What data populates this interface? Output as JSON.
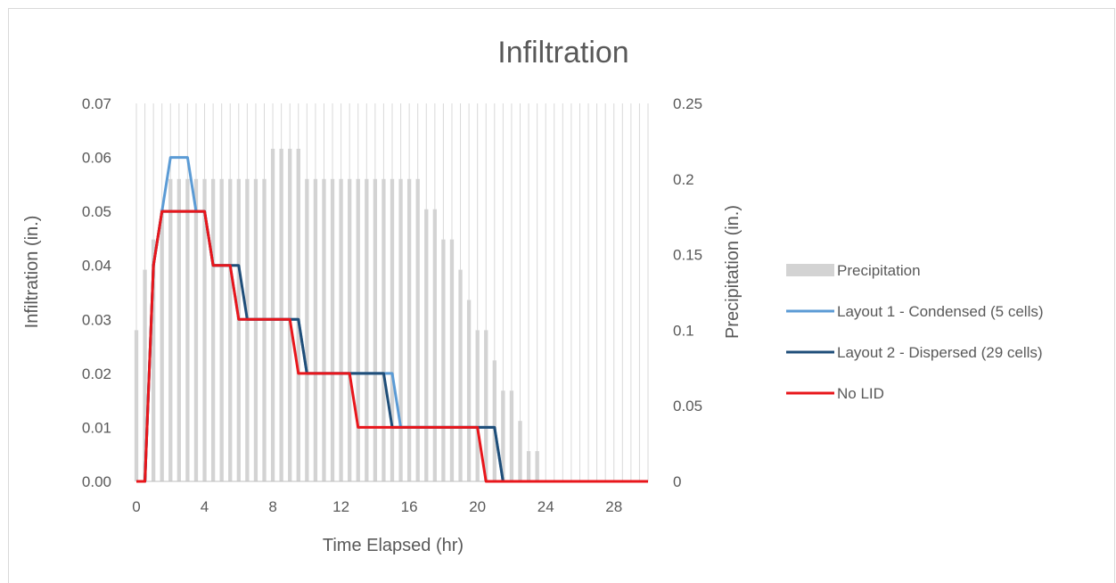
{
  "chart_data": {
    "type": "bar+line",
    "title": "Infiltration",
    "xlabel": "Time Elapsed (hr)",
    "ylabel": "Infiltration (in.)",
    "y2label": "Precipitation (in.)",
    "xlim": [
      0,
      30
    ],
    "ylim": [
      0,
      0.07
    ],
    "y2lim": [
      0,
      0.25
    ],
    "x_ticks": [
      "0",
      "4",
      "8",
      "12",
      "16",
      "20",
      "24",
      "28"
    ],
    "y_ticks": [
      "0.00",
      "0.01",
      "0.02",
      "0.03",
      "0.04",
      "0.05",
      "0.06",
      "0.07"
    ],
    "y2_ticks": [
      "0",
      "0.05",
      "0.1",
      "0.15",
      "0.2",
      "0.25"
    ],
    "grid": "vertical",
    "legend_position": "right",
    "bar_series": {
      "name": "Precipitation",
      "axis": "secondary",
      "color": "#d3d3d3",
      "x": [
        0,
        0.5,
        1,
        1.5,
        2,
        2.5,
        3,
        3.5,
        4,
        4.5,
        5,
        5.5,
        6,
        6.5,
        7,
        7.5,
        8,
        8.5,
        9,
        9.5,
        10,
        10.5,
        11,
        11.5,
        12,
        12.5,
        13,
        13.5,
        14,
        14.5,
        15,
        15.5,
        16,
        16.5,
        17,
        17.5,
        18,
        18.5,
        19,
        19.5,
        20,
        20.5,
        21,
        21.5,
        22,
        22.5,
        23,
        23.5,
        24,
        24.5,
        25,
        25.5,
        26,
        26.5,
        27,
        27.5,
        28,
        28.5,
        29,
        29.5,
        30
      ],
      "values": [
        0.1,
        0.14,
        0.16,
        0.18,
        0.2,
        0.2,
        0.2,
        0.2,
        0.2,
        0.2,
        0.2,
        0.2,
        0.2,
        0.2,
        0.2,
        0.2,
        0.22,
        0.22,
        0.22,
        0.22,
        0.2,
        0.2,
        0.2,
        0.2,
        0.2,
        0.2,
        0.2,
        0.2,
        0.2,
        0.2,
        0.2,
        0.2,
        0.2,
        0.2,
        0.18,
        0.18,
        0.16,
        0.16,
        0.14,
        0.12,
        0.1,
        0.1,
        0.08,
        0.06,
        0.06,
        0.04,
        0.02,
        0.02,
        0,
        0,
        0,
        0,
        0,
        0,
        0,
        0,
        0,
        0,
        0,
        0,
        0
      ]
    },
    "series": [
      {
        "name": "Layout 1 - Condensed (5 cells)",
        "color": "#5b9bd5",
        "points": [
          [
            0,
            0
          ],
          [
            0.5,
            0
          ],
          [
            1,
            0.04
          ],
          [
            1.5,
            0.05
          ],
          [
            2,
            0.06
          ],
          [
            3,
            0.06
          ],
          [
            3.5,
            0.05
          ],
          [
            4,
            0.05
          ],
          [
            4.5,
            0.04
          ],
          [
            5.5,
            0.04
          ],
          [
            6,
            0.03
          ],
          [
            9.5,
            0.03
          ],
          [
            10,
            0.02
          ],
          [
            14.5,
            0.02
          ],
          [
            15,
            0.02
          ],
          [
            15.5,
            0.01
          ],
          [
            20.5,
            0.01
          ],
          [
            21,
            0.01
          ],
          [
            21.5,
            0
          ],
          [
            30,
            0
          ]
        ]
      },
      {
        "name": "Layout 2 - Dispersed (29 cells)",
        "color": "#1f4e79",
        "points": [
          [
            0,
            0
          ],
          [
            0.5,
            0
          ],
          [
            1,
            0.04
          ],
          [
            1.5,
            0.05
          ],
          [
            4,
            0.05
          ],
          [
            4.5,
            0.04
          ],
          [
            5.5,
            0.04
          ],
          [
            6,
            0.04
          ],
          [
            6.5,
            0.03
          ],
          [
            9.5,
            0.03
          ],
          [
            10,
            0.02
          ],
          [
            14.5,
            0.02
          ],
          [
            15,
            0.01
          ],
          [
            21,
            0.01
          ],
          [
            21.5,
            0
          ],
          [
            30,
            0
          ]
        ]
      },
      {
        "name": "No LID",
        "color": "#e8161b",
        "points": [
          [
            0,
            0
          ],
          [
            0.5,
            0
          ],
          [
            1,
            0.04
          ],
          [
            1.5,
            0.05
          ],
          [
            4,
            0.05
          ],
          [
            4.5,
            0.04
          ],
          [
            5.5,
            0.04
          ],
          [
            6,
            0.03
          ],
          [
            9,
            0.03
          ],
          [
            9.5,
            0.02
          ],
          [
            12.5,
            0.02
          ],
          [
            13,
            0.01
          ],
          [
            20,
            0.01
          ],
          [
            20.5,
            0
          ],
          [
            30,
            0
          ]
        ]
      }
    ]
  }
}
